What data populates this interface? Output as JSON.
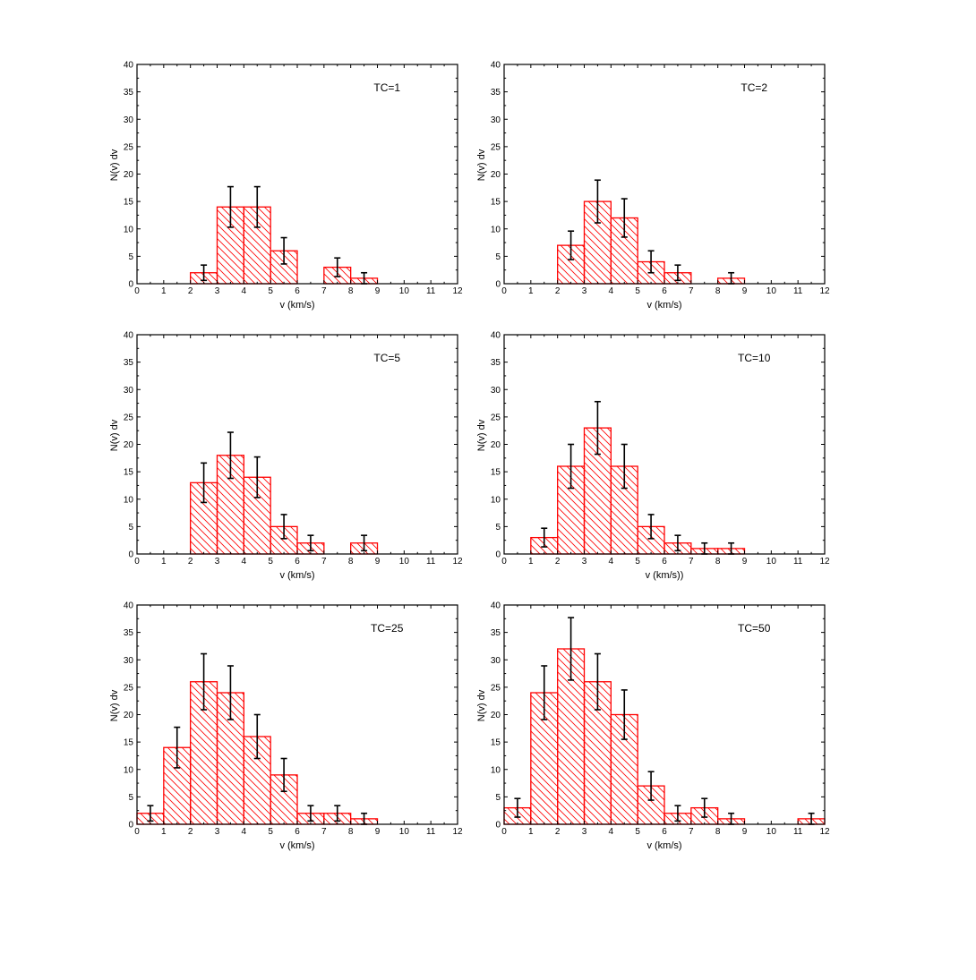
{
  "colors": {
    "bar": "#ff0000",
    "hatch": "#ff0000",
    "error": "#000000",
    "axis": "#000000"
  },
  "chart_data": [
    {
      "type": "bar",
      "title": "TC=1",
      "xlabel": "v (km/s)",
      "ylabel": "N(v) dv",
      "xlim": [
        0,
        12
      ],
      "ylim": [
        0,
        40
      ],
      "xticks": [
        "0",
        "1",
        "2",
        "3",
        "4",
        "5",
        "6",
        "7",
        "8",
        "9",
        "10",
        "11",
        "12"
      ],
      "yticks": [
        "0",
        "5",
        "10",
        "15",
        "20",
        "25",
        "30",
        "35",
        "40"
      ],
      "bin_width": 1,
      "bins": [
        {
          "x": 2,
          "y": 2,
          "err": 1.4
        },
        {
          "x": 3,
          "y": 14,
          "err": 3.7
        },
        {
          "x": 4,
          "y": 14,
          "err": 3.7
        },
        {
          "x": 5,
          "y": 6,
          "err": 2.4
        },
        {
          "x": 7,
          "y": 3,
          "err": 1.7
        },
        {
          "x": 8,
          "y": 1,
          "err": 1.0
        }
      ]
    },
    {
      "type": "bar",
      "title": "TC=2",
      "xlabel": "v (km/s)",
      "ylabel": "N(v) dv",
      "xlim": [
        0,
        12
      ],
      "ylim": [
        0,
        40
      ],
      "xticks": [
        "0",
        "1",
        "2",
        "3",
        "4",
        "5",
        "6",
        "7",
        "8",
        "9",
        "10",
        "11",
        "12"
      ],
      "yticks": [
        "0",
        "5",
        "10",
        "15",
        "20",
        "25",
        "30",
        "35",
        "40"
      ],
      "bin_width": 1,
      "bins": [
        {
          "x": 2,
          "y": 7,
          "err": 2.6
        },
        {
          "x": 3,
          "y": 15,
          "err": 3.9
        },
        {
          "x": 4,
          "y": 12,
          "err": 3.5
        },
        {
          "x": 5,
          "y": 4,
          "err": 2.0
        },
        {
          "x": 6,
          "y": 2,
          "err": 1.4
        },
        {
          "x": 8,
          "y": 1,
          "err": 1.0
        }
      ]
    },
    {
      "type": "bar",
      "title": "TC=5",
      "xlabel": "v (km/s)",
      "ylabel": "N(v) dv",
      "xlim": [
        0,
        12
      ],
      "ylim": [
        0,
        40
      ],
      "xticks": [
        "0",
        "1",
        "2",
        "3",
        "4",
        "5",
        "6",
        "7",
        "8",
        "9",
        "10",
        "11",
        "12"
      ],
      "yticks": [
        "0",
        "5",
        "10",
        "15",
        "20",
        "25",
        "30",
        "35",
        "40"
      ],
      "bin_width": 1,
      "bins": [
        {
          "x": 2,
          "y": 13,
          "err": 3.6
        },
        {
          "x": 3,
          "y": 18,
          "err": 4.2
        },
        {
          "x": 4,
          "y": 14,
          "err": 3.7
        },
        {
          "x": 5,
          "y": 5,
          "err": 2.2
        },
        {
          "x": 6,
          "y": 2,
          "err": 1.4
        },
        {
          "x": 8,
          "y": 2,
          "err": 1.4
        }
      ]
    },
    {
      "type": "bar",
      "title": "TC=10",
      "xlabel": "v (km/s))",
      "ylabel": "N(v) dv",
      "xlim": [
        0,
        12
      ],
      "ylim": [
        0,
        40
      ],
      "xticks": [
        "0",
        "1",
        "2",
        "3",
        "4",
        "5",
        "6",
        "7",
        "8",
        "9",
        "10",
        "11",
        "12"
      ],
      "yticks": [
        "0",
        "5",
        "10",
        "15",
        "20",
        "25",
        "30",
        "35",
        "40"
      ],
      "bin_width": 1,
      "bins": [
        {
          "x": 1,
          "y": 3,
          "err": 1.7
        },
        {
          "x": 2,
          "y": 16,
          "err": 4.0
        },
        {
          "x": 3,
          "y": 23,
          "err": 4.8
        },
        {
          "x": 4,
          "y": 16,
          "err": 4.0
        },
        {
          "x": 5,
          "y": 5,
          "err": 2.2
        },
        {
          "x": 6,
          "y": 2,
          "err": 1.4
        },
        {
          "x": 7,
          "y": 1,
          "err": 1.0
        },
        {
          "x": 8,
          "y": 1,
          "err": 1.0
        }
      ]
    },
    {
      "type": "bar",
      "title": "TC=25",
      "xlabel": "v (km/s)",
      "ylabel": "N(v) dv",
      "xlim": [
        0,
        12
      ],
      "ylim": [
        0,
        40
      ],
      "xticks": [
        "0",
        "1",
        "2",
        "3",
        "4",
        "5",
        "6",
        "7",
        "8",
        "9",
        "10",
        "11",
        "12"
      ],
      "yticks": [
        "0",
        "5",
        "10",
        "15",
        "20",
        "25",
        "30",
        "35",
        "40"
      ],
      "bin_width": 1,
      "bins": [
        {
          "x": 0,
          "y": 2,
          "err": 1.4
        },
        {
          "x": 1,
          "y": 14,
          "err": 3.7
        },
        {
          "x": 2,
          "y": 26,
          "err": 5.1
        },
        {
          "x": 3,
          "y": 24,
          "err": 4.9
        },
        {
          "x": 4,
          "y": 16,
          "err": 4.0
        },
        {
          "x": 5,
          "y": 9,
          "err": 3.0
        },
        {
          "x": 6,
          "y": 2,
          "err": 1.4
        },
        {
          "x": 7,
          "y": 2,
          "err": 1.4
        },
        {
          "x": 8,
          "y": 1,
          "err": 1.0
        }
      ]
    },
    {
      "type": "bar",
      "title": "TC=50",
      "xlabel": "v (km/s)",
      "ylabel": "N(v) dv",
      "xlim": [
        0,
        12
      ],
      "ylim": [
        0,
        40
      ],
      "xticks": [
        "0",
        "1",
        "2",
        "3",
        "4",
        "5",
        "6",
        "7",
        "8",
        "9",
        "10",
        "11",
        "12"
      ],
      "yticks": [
        "0",
        "5",
        "10",
        "15",
        "20",
        "25",
        "30",
        "35",
        "40"
      ],
      "bin_width": 1,
      "bins": [
        {
          "x": 0,
          "y": 3,
          "err": 1.7
        },
        {
          "x": 1,
          "y": 24,
          "err": 4.9
        },
        {
          "x": 2,
          "y": 32,
          "err": 5.7
        },
        {
          "x": 3,
          "y": 26,
          "err": 5.1
        },
        {
          "x": 4,
          "y": 20,
          "err": 4.5
        },
        {
          "x": 5,
          "y": 7,
          "err": 2.6
        },
        {
          "x": 6,
          "y": 2,
          "err": 1.4
        },
        {
          "x": 7,
          "y": 3,
          "err": 1.7
        },
        {
          "x": 8,
          "y": 1,
          "err": 1.0
        },
        {
          "x": 11,
          "y": 1,
          "err": 1.0
        }
      ]
    }
  ]
}
